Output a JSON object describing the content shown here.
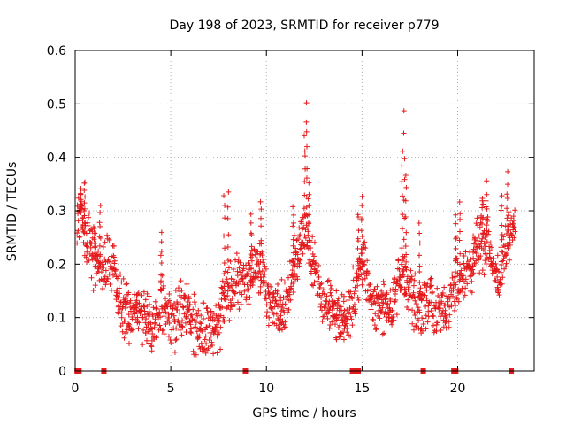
{
  "chart_data": {
    "type": "scatter",
    "title": "Day 198 of 2023, SRMTID for receiver p779",
    "xlabel": "GPS time / hours",
    "ylabel": "SRMTID / TECUs",
    "xlim": [
      0,
      24
    ],
    "ylim": [
      0,
      0.6
    ],
    "x_ticks": [
      0,
      5,
      10,
      15,
      20
    ],
    "y_ticks": [
      0,
      0.1,
      0.2,
      0.3,
      0.4,
      0.5,
      0.6
    ],
    "grid": true,
    "marker": "+",
    "series_color": "#e41a1c",
    "series": [
      {
        "name": "SRMTID",
        "trend": [
          [
            0.0,
            0.22
          ],
          [
            0.2,
            0.3
          ],
          [
            0.5,
            0.26
          ],
          [
            0.8,
            0.24
          ],
          [
            1.0,
            0.22
          ],
          [
            1.2,
            0.2
          ],
          [
            1.5,
            0.18
          ],
          [
            1.8,
            0.2
          ],
          [
            2.0,
            0.19
          ],
          [
            2.2,
            0.15
          ],
          [
            2.5,
            0.12
          ],
          [
            2.8,
            0.1
          ],
          [
            3.0,
            0.11
          ],
          [
            3.3,
            0.12
          ],
          [
            3.6,
            0.1
          ],
          [
            3.9,
            0.09
          ],
          [
            4.1,
            0.08
          ],
          [
            4.3,
            0.09
          ],
          [
            4.5,
            0.14
          ],
          [
            4.8,
            0.11
          ],
          [
            5.0,
            0.1
          ],
          [
            5.3,
            0.1
          ],
          [
            5.6,
            0.11
          ],
          [
            5.9,
            0.12
          ],
          [
            6.2,
            0.09
          ],
          [
            6.5,
            0.08
          ],
          [
            6.8,
            0.07
          ],
          [
            7.1,
            0.07
          ],
          [
            7.4,
            0.08
          ],
          [
            7.7,
            0.12
          ],
          [
            8.0,
            0.14
          ],
          [
            8.3,
            0.16
          ],
          [
            8.6,
            0.17
          ],
          [
            8.9,
            0.16
          ],
          [
            9.2,
            0.18
          ],
          [
            9.5,
            0.2
          ],
          [
            9.8,
            0.17
          ],
          [
            10.1,
            0.13
          ],
          [
            10.4,
            0.12
          ],
          [
            10.7,
            0.11
          ],
          [
            11.0,
            0.12
          ],
          [
            11.3,
            0.17
          ],
          [
            11.6,
            0.22
          ],
          [
            11.9,
            0.26
          ],
          [
            12.1,
            0.27
          ],
          [
            12.4,
            0.2
          ],
          [
            12.7,
            0.16
          ],
          [
            13.0,
            0.13
          ],
          [
            13.3,
            0.12
          ],
          [
            13.6,
            0.11
          ],
          [
            13.9,
            0.1
          ],
          [
            14.2,
            0.11
          ],
          [
            14.5,
            0.13
          ],
          [
            14.8,
            0.18
          ],
          [
            15.0,
            0.2
          ],
          [
            15.3,
            0.17
          ],
          [
            15.6,
            0.13
          ],
          [
            15.9,
            0.12
          ],
          [
            16.2,
            0.11
          ],
          [
            16.5,
            0.12
          ],
          [
            16.8,
            0.15
          ],
          [
            17.1,
            0.18
          ],
          [
            17.4,
            0.16
          ],
          [
            17.7,
            0.13
          ],
          [
            18.0,
            0.12
          ],
          [
            18.3,
            0.14
          ],
          [
            18.6,
            0.12
          ],
          [
            18.9,
            0.11
          ],
          [
            19.2,
            0.11
          ],
          [
            19.5,
            0.12
          ],
          [
            19.8,
            0.16
          ],
          [
            20.1,
            0.16
          ],
          [
            20.4,
            0.18
          ],
          [
            20.7,
            0.2
          ],
          [
            21.0,
            0.23
          ],
          [
            21.3,
            0.25
          ],
          [
            21.6,
            0.24
          ],
          [
            21.9,
            0.2
          ],
          [
            22.2,
            0.18
          ],
          [
            22.5,
            0.22
          ],
          [
            22.7,
            0.26
          ],
          [
            23.0,
            0.27
          ]
        ],
        "spikes": [
          [
            0.3,
            0.34
          ],
          [
            0.5,
            0.36
          ],
          [
            1.0,
            0.27
          ],
          [
            1.3,
            0.31
          ],
          [
            4.5,
            0.26
          ],
          [
            7.8,
            0.33
          ],
          [
            8.0,
            0.33
          ],
          [
            9.2,
            0.29
          ],
          [
            9.7,
            0.32
          ],
          [
            11.4,
            0.31
          ],
          [
            12.0,
            0.44
          ],
          [
            12.1,
            0.5
          ],
          [
            12.2,
            0.35
          ],
          [
            14.8,
            0.3
          ],
          [
            15.0,
            0.32
          ],
          [
            17.1,
            0.41
          ],
          [
            17.2,
            0.48
          ],
          [
            17.3,
            0.36
          ],
          [
            18.0,
            0.28
          ],
          [
            19.9,
            0.29
          ],
          [
            20.1,
            0.32
          ],
          [
            21.3,
            0.33
          ],
          [
            21.5,
            0.35
          ],
          [
            22.3,
            0.33
          ],
          [
            22.6,
            0.37
          ]
        ],
        "noise_amplitude": 0.05
      }
    ],
    "ground_markers_x": [
      0.1,
      0.2,
      1.5,
      8.9,
      14.5,
      14.6,
      14.8,
      18.2,
      19.8,
      19.9,
      22.8
    ]
  }
}
